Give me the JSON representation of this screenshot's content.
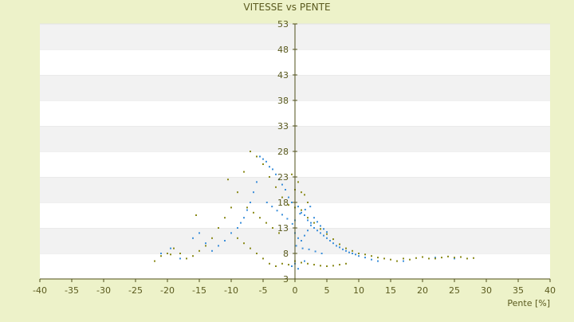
{
  "chart_data": {
    "type": "scatter",
    "title": "VITESSE vs PENTE",
    "xlabel": "Pente [%]",
    "ylabel": "",
    "xlim": [
      -40,
      40
    ],
    "ylim": [
      3,
      53
    ],
    "xticks": [
      -40,
      -35,
      -30,
      -25,
      -20,
      -15,
      -10,
      -5,
      0,
      5,
      10,
      15,
      20,
      25,
      30,
      35,
      40
    ],
    "yticks": [
      3,
      8,
      13,
      18,
      23,
      28,
      33,
      38,
      43,
      48,
      53
    ],
    "axis_origin": {
      "x": 0,
      "y": 3
    },
    "grid": "alternating horizontal bands",
    "legend": "none",
    "colors": {
      "background": "#EDF2C9",
      "band_white": "#FFFFFF",
      "band_grey": "#F2F2F2",
      "axis": "#4F4F1A",
      "text": "#5A5A1E",
      "series_primary": "#3C8FDA",
      "series_secondary": "#8A8A1A"
    },
    "series": [
      {
        "color": "#3C8FDA",
        "marker": "dot",
        "points": [
          [
            -0.5,
            18.0
          ],
          [
            0.5,
            17.2
          ],
          [
            1.0,
            16.0
          ],
          [
            1.5,
            15.5
          ],
          [
            2.0,
            14.5
          ],
          [
            2.5,
            14.0
          ],
          [
            3.0,
            13.0
          ],
          [
            3.5,
            12.5
          ],
          [
            4.0,
            12.0
          ],
          [
            4.5,
            11.5
          ],
          [
            5.0,
            11.0
          ],
          [
            5.5,
            10.5
          ],
          [
            6.0,
            10.0
          ],
          [
            6.5,
            9.5
          ],
          [
            7.0,
            9.2
          ],
          [
            7.5,
            8.8
          ],
          [
            8.0,
            8.5
          ],
          [
            8.5,
            8.2
          ],
          [
            9.0,
            8.0
          ],
          [
            9.5,
            7.8
          ],
          [
            10.0,
            7.5
          ],
          [
            11.0,
            7.2
          ],
          [
            12.0,
            6.8
          ],
          [
            13.0,
            6.5
          ],
          [
            -1.0,
            19.0
          ],
          [
            -1.5,
            20.5
          ],
          [
            -2.0,
            21.5
          ],
          [
            -2.5,
            22.5
          ],
          [
            -3.0,
            23.5
          ],
          [
            -3.5,
            24.5
          ],
          [
            -4.0,
            25.0
          ],
          [
            -4.5,
            26.0
          ],
          [
            -5.0,
            26.5
          ],
          [
            -5.5,
            27.0
          ],
          [
            -6.0,
            22.0
          ],
          [
            -6.5,
            20.0
          ],
          [
            -7.0,
            18.0
          ],
          [
            -7.5,
            16.5
          ],
          [
            -8.0,
            15.0
          ],
          [
            -8.5,
            14.0
          ],
          [
            -9.0,
            13.0
          ],
          [
            -10.0,
            12.0
          ],
          [
            -11.0,
            10.5
          ],
          [
            -12.0,
            9.5
          ],
          [
            -13.0,
            8.5
          ],
          [
            -14.0,
            10.0
          ],
          [
            -15.0,
            12.0
          ],
          [
            -16.0,
            11.0
          ],
          [
            0.0,
            12.0
          ],
          [
            0.5,
            11.0
          ],
          [
            1.0,
            10.5
          ],
          [
            1.5,
            11.5
          ],
          [
            2.0,
            12.5
          ],
          [
            2.5,
            13.5
          ],
          [
            3.0,
            15.0
          ],
          [
            3.5,
            14.2
          ],
          [
            4.0,
            13.4
          ],
          [
            4.5,
            12.8
          ],
          [
            5.0,
            12.2
          ],
          [
            0.0,
            14.5
          ],
          [
            0.8,
            15.8
          ],
          [
            1.6,
            16.6
          ],
          [
            2.4,
            17.2
          ],
          [
            -0.4,
            13.8
          ],
          [
            -1.2,
            14.8
          ],
          [
            -2.0,
            15.6
          ],
          [
            -2.8,
            16.4
          ],
          [
            -3.6,
            17.2
          ],
          [
            -4.4,
            18.0
          ],
          [
            0.2,
            9.5
          ],
          [
            1.2,
            9.0
          ],
          [
            2.2,
            8.8
          ],
          [
            3.2,
            8.4
          ],
          [
            4.2,
            8.0
          ],
          [
            0.0,
            6.0
          ],
          [
            0.5,
            5.0
          ],
          [
            -0.5,
            5.5
          ],
          [
            1.5,
            6.5
          ],
          [
            22.0,
            7.2
          ],
          [
            25.0,
            7.0
          ],
          [
            17.0,
            6.5
          ],
          [
            -18.0,
            7.0
          ],
          [
            -21.0,
            8.0
          ],
          [
            -19.5,
            9.0
          ]
        ]
      },
      {
        "color": "#8A8A1A",
        "marker": "dot",
        "points": [
          [
            -1.0,
            17.5
          ],
          [
            0.0,
            17.0
          ],
          [
            1.0,
            16.5
          ],
          [
            2.0,
            15.0
          ],
          [
            3.0,
            14.0
          ],
          [
            4.0,
            12.8
          ],
          [
            5.0,
            11.8
          ],
          [
            6.0,
            10.8
          ],
          [
            7.0,
            9.8
          ],
          [
            8.0,
            9.0
          ],
          [
            9.0,
            8.5
          ],
          [
            10.0,
            8.0
          ],
          [
            11.0,
            7.8
          ],
          [
            12.0,
            7.5
          ],
          [
            13.0,
            7.2
          ],
          [
            14.0,
            7.0
          ],
          [
            15.0,
            6.8
          ],
          [
            16.0,
            6.5
          ],
          [
            17.0,
            7.0
          ],
          [
            18.0,
            6.8
          ],
          [
            19.0,
            7.1
          ],
          [
            20.0,
            7.3
          ],
          [
            21.0,
            7.0
          ],
          [
            22.0,
            7.0
          ],
          [
            23.0,
            7.2
          ],
          [
            24.0,
            7.4
          ],
          [
            25.0,
            7.2
          ],
          [
            26.0,
            7.3
          ],
          [
            27.0,
            7.0
          ],
          [
            28.0,
            7.1
          ],
          [
            -2.0,
            19.0
          ],
          [
            -3.0,
            21.0
          ],
          [
            -4.0,
            23.0
          ],
          [
            -5.0,
            25.5
          ],
          [
            -6.0,
            27.0
          ],
          [
            -7.0,
            28.0
          ],
          [
            -8.0,
            24.0
          ],
          [
            -9.0,
            20.0
          ],
          [
            -10.0,
            17.0
          ],
          [
            -11.0,
            15.0
          ],
          [
            -12.0,
            13.0
          ],
          [
            -13.0,
            11.0
          ],
          [
            -14.0,
            9.5
          ],
          [
            -15.0,
            8.5
          ],
          [
            -16.0,
            7.5
          ],
          [
            -17.0,
            7.0
          ],
          [
            -18.0,
            8.0
          ],
          [
            -19.0,
            9.0
          ],
          [
            -20.0,
            8.0
          ],
          [
            -21.0,
            7.5
          ],
          [
            -22.0,
            6.5
          ],
          [
            -19.5,
            7.8
          ],
          [
            -15.5,
            15.5
          ],
          [
            -10.5,
            22.5
          ],
          [
            0.0,
            20.5
          ],
          [
            0.5,
            22.0
          ],
          [
            1.0,
            20.0
          ],
          [
            -0.5,
            23.5
          ],
          [
            1.5,
            19.5
          ],
          [
            2.0,
            18.0
          ],
          [
            0.0,
            6.5
          ],
          [
            1.0,
            6.2
          ],
          [
            2.0,
            6.0
          ],
          [
            3.0,
            5.8
          ],
          [
            4.0,
            5.6
          ],
          [
            5.0,
            5.5
          ],
          [
            6.0,
            5.6
          ],
          [
            7.0,
            5.8
          ],
          [
            8.0,
            6.0
          ],
          [
            -1.0,
            5.8
          ],
          [
            -2.0,
            6.0
          ],
          [
            -3.0,
            5.5
          ],
          [
            -4.0,
            6.0
          ],
          [
            -5.0,
            7.0
          ],
          [
            -6.0,
            8.0
          ],
          [
            -7.0,
            9.0
          ],
          [
            -8.0,
            10.0
          ],
          [
            -9.0,
            11.0
          ],
          [
            -2.5,
            12.0
          ],
          [
            -3.5,
            13.0
          ],
          [
            -4.5,
            14.0
          ],
          [
            -5.5,
            15.0
          ],
          [
            -6.5,
            16.0
          ],
          [
            -7.5,
            17.0
          ]
        ]
      }
    ]
  }
}
